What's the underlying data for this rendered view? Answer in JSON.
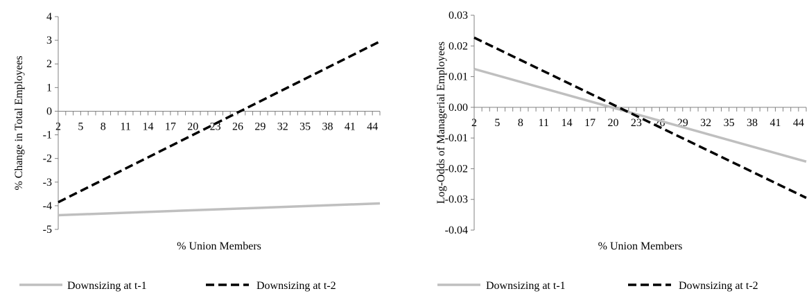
{
  "chart_data": [
    {
      "type": "line",
      "xlabel": "% Union Members",
      "ylabel": "% Change in Total Employees",
      "ylim": [
        -5,
        4
      ],
      "yticks": [
        "4",
        "3",
        "2",
        "1",
        "0",
        "-1",
        "-2",
        "-3",
        "-4",
        "-5"
      ],
      "xlim": [
        2,
        45
      ],
      "xticks": [
        "2",
        "5",
        "8",
        "11",
        "14",
        "17",
        "20",
        "23",
        "26",
        "29",
        "32",
        "35",
        "38",
        "41",
        "44"
      ],
      "legend_position": "bottom",
      "series": [
        {
          "name": "Downsizing at t-1",
          "color": "#bfbfbf",
          "dash": "solid",
          "x": [
            2,
            45
          ],
          "y": [
            -4.4,
            -3.9
          ]
        },
        {
          "name": "Downsizing at t-2",
          "color": "#000000",
          "dash": "dashed",
          "x": [
            2,
            45
          ],
          "y": [
            -3.85,
            2.95
          ]
        }
      ]
    },
    {
      "type": "line",
      "xlabel": "% Union Members",
      "ylabel": "Log-Odds of Managerial Employees",
      "ylim": [
        -0.04,
        0.03
      ],
      "yticks": [
        "0.03",
        "0.02",
        "0.01",
        "0.00",
        "-0.01",
        "-0.02",
        "-0.03",
        "-0.04"
      ],
      "xlim": [
        2,
        45
      ],
      "xticks": [
        "2",
        "5",
        "8",
        "11",
        "14",
        "17",
        "20",
        "23",
        "26",
        "29",
        "32",
        "35",
        "38",
        "41",
        "44"
      ],
      "legend_position": "bottom",
      "series": [
        {
          "name": "Downsizing at t-1",
          "color": "#bfbfbf",
          "dash": "solid",
          "x": [
            2,
            45
          ],
          "y": [
            0.0125,
            -0.0177
          ]
        },
        {
          "name": "Downsizing at t-2",
          "color": "#000000",
          "dash": "dashed",
          "x": [
            2,
            45
          ],
          "y": [
            0.0227,
            -0.0295
          ]
        }
      ]
    }
  ]
}
